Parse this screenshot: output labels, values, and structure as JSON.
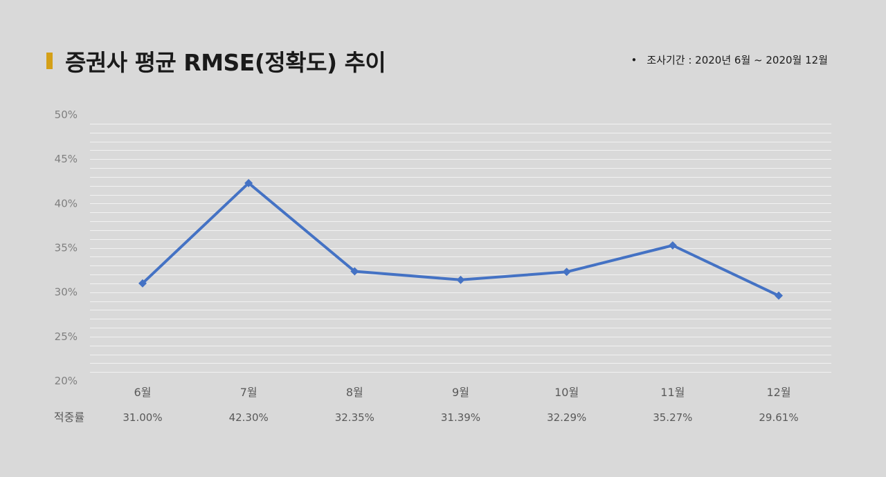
{
  "header": {
    "title": "증권사 평균 RMSE(정확도) 추이",
    "period_bullet": "•",
    "period": "조사기간 : 2020년 6월 ~ 2020월 12월"
  },
  "chart_data": {
    "type": "line",
    "title": "증권사 평균 RMSE(정확도) 추이",
    "categories": [
      "6월",
      "7월",
      "8월",
      "9월",
      "10월",
      "11월",
      "12월"
    ],
    "y_ticks": [
      "50%",
      "45%",
      "40%",
      "35%",
      "30%",
      "25%",
      "20%"
    ],
    "ylim": [
      20,
      50
    ],
    "series": [
      {
        "values": [
          31.0,
          42.3,
          32.35,
          31.39,
          32.29,
          35.27,
          29.61
        ]
      }
    ],
    "row_label": "적중률",
    "data_labels": [
      "31.00%",
      "42.30%",
      "32.35%",
      "31.39%",
      "32.29%",
      "35.27%",
      "29.61%"
    ],
    "grid": true,
    "line_color": "#4472c4",
    "gridline_color": "#f2f2f2"
  }
}
